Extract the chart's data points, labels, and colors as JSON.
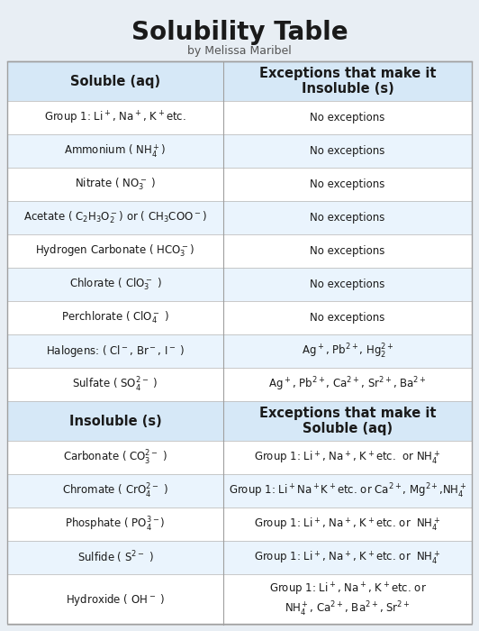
{
  "title": "Solubility Table",
  "subtitle": "by Melissa Maribel",
  "bg_color": "#e8eef4",
  "header_bg": "#d6e8f7",
  "alt_row_bg": "#eaf4fd",
  "white_row_bg": "#ffffff",
  "soluble_rows": [
    {
      "left": "Group 1: Li$^+$, Na$^+$, K$^+$etc.",
      "right": "No exceptions",
      "alt": false
    },
    {
      "left": "Ammonium ( NH$_4^+$)",
      "right": "No exceptions",
      "alt": true
    },
    {
      "left": "Nitrate ( NO$_3^-$ )",
      "right": "No exceptions",
      "alt": false
    },
    {
      "left": "Acetate ( C$_2$H$_3$O$_2^-$) or ( CH$_3$COO$^-$)",
      "right": "No exceptions",
      "alt": true
    },
    {
      "left": "Hydrogen Carbonate ( HCO$_3^-$)",
      "right": "No exceptions",
      "alt": false
    },
    {
      "left": "Chlorate ( ClO$_3^-$ )",
      "right": "No exceptions",
      "alt": true
    },
    {
      "left": "Perchlorate ( ClO$_4^-$ )",
      "right": "No exceptions",
      "alt": false
    },
    {
      "left": "Halogens: ( Cl$^-$, Br$^-$, I$^-$ )",
      "right": "Ag$^+$, Pb$^{2+}$, Hg$_2^{2+}$",
      "alt": true
    },
    {
      "left": "Sulfate ( SO$_4^{2-}$ )",
      "right": "Ag$^+$, Pb$^{2+}$, Ca$^{2+}$, Sr$^{2+}$, Ba$^{2+}$",
      "alt": false
    }
  ],
  "insoluble_rows": [
    {
      "left": "Carbonate ( CO$_3^{2-}$ )",
      "right": "Group 1: Li$^+$, Na$^+$, K$^+$etc.  or NH$_4^+$",
      "alt": false
    },
    {
      "left": "Chromate ( CrO$_4^{2-}$ )",
      "right": "Group 1: Li$^+$Na$^+$K$^+$etc. or Ca$^{2+}$, Mg$^{2+}$,NH$_4^+$",
      "alt": true
    },
    {
      "left": "Phosphate ( PO$_4^{3-}$)",
      "right": "Group 1: Li$^+$, Na$^+$, K$^+$etc. or  NH$_4^+$",
      "alt": false
    },
    {
      "left": "Sulfide ( S$^{2-}$ )",
      "right": "Group 1: Li$^+$, Na$^+$, K$^+$etc. or  NH$_4^+$",
      "alt": true
    },
    {
      "left": "Hydroxide ( OH$^-$ )",
      "right": "Group 1: Li$^+$, Na$^+$, K$^+$etc. or\nNH$_4^+$, Ca$^{2+}$, Ba$^{2+}$, Sr$^{2+}$",
      "alt": false
    }
  ]
}
